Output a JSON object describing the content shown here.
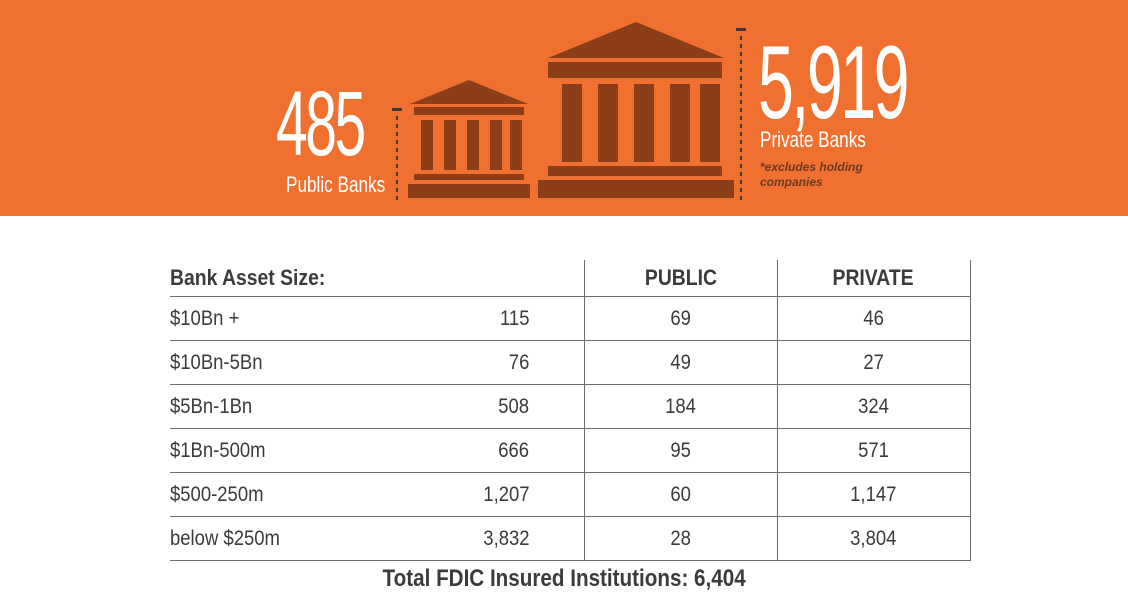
{
  "banner": {
    "public_count": "485",
    "public_label": "Public Banks",
    "private_count": "5,919",
    "private_label": "Private Banks",
    "footnote": "*excludes holding companies",
    "bg_color": "#f07030",
    "icon_color": "#8b3e17",
    "icons": [
      "bank-building-small-icon",
      "bank-building-large-icon"
    ]
  },
  "table": {
    "headers": [
      "Bank Asset Size:",
      "PUBLIC",
      "PRIVATE"
    ],
    "rows": [
      {
        "size": "$10Bn +",
        "total": "115",
        "public": "69",
        "private": "46"
      },
      {
        "size": "$10Bn-5Bn",
        "total": "76",
        "public": "49",
        "private": "27"
      },
      {
        "size": "$5Bn-1Bn",
        "total": "508",
        "public": "184",
        "private": "324"
      },
      {
        "size": "$1Bn-500m",
        "total": "666",
        "public": "95",
        "private": "571"
      },
      {
        "size": "$500-250m",
        "total": "1,207",
        "public": "60",
        "private": "1,147"
      },
      {
        "size": "below $250m",
        "total": "3,832",
        "public": "28",
        "private": "3,804"
      }
    ]
  },
  "footer": {
    "total_text": "Total FDIC Insured Institutions: 6,404"
  }
}
